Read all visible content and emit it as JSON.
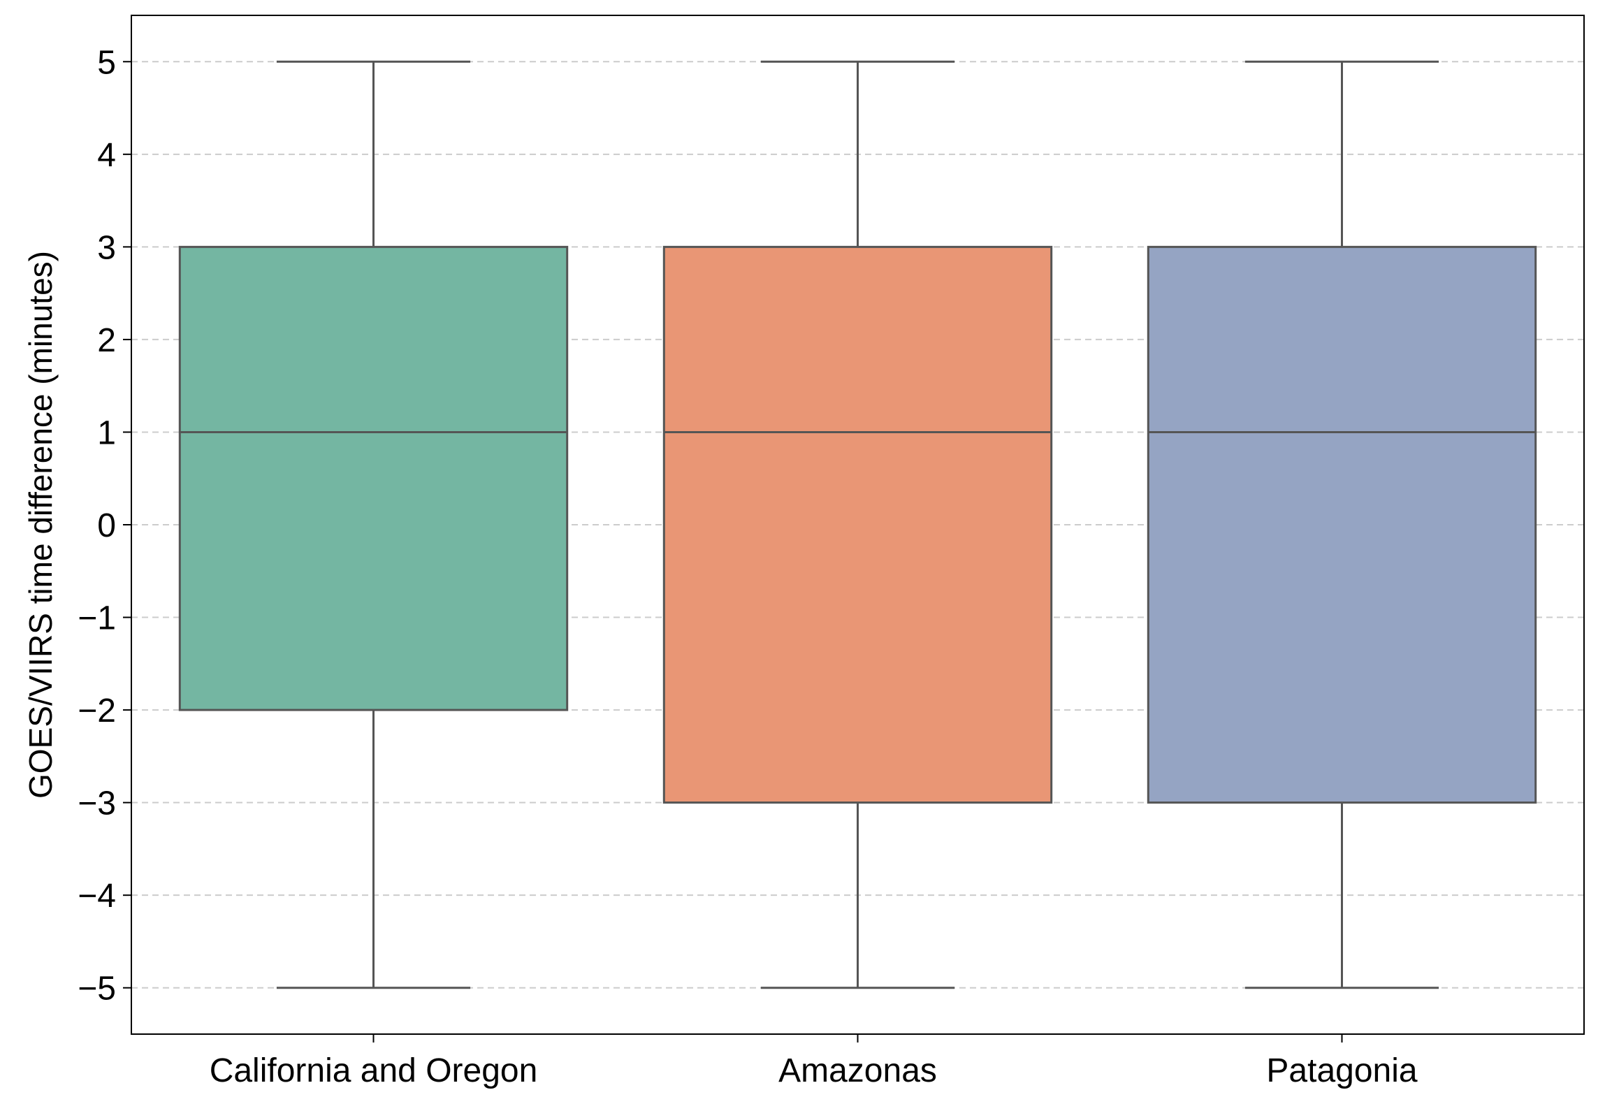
{
  "chart_data": {
    "type": "box",
    "title": "",
    "xlabel": "",
    "ylabel": "GOES/VIIRS time difference (minutes)",
    "ylim": [
      -5.5,
      5.5
    ],
    "yticks": [
      5,
      4,
      3,
      2,
      1,
      0,
      -1,
      -2,
      -3,
      -4,
      -5
    ],
    "ytick_labels": [
      "5",
      "4",
      "3",
      "2",
      "1",
      "0",
      "−1",
      "−2",
      "−3",
      "−4",
      "−5"
    ],
    "grid": "horizontal dashed",
    "categories": [
      "California and Oregon",
      "Amazonas",
      "Patagonia"
    ],
    "boxes": [
      {
        "category": "California and Oregon",
        "whisker_low": -5,
        "q1": -2,
        "median": 1,
        "q3": 3,
        "whisker_high": 5,
        "color": "#74b6a2"
      },
      {
        "category": "Amazonas",
        "whisker_low": -5,
        "q1": -3,
        "median": 1,
        "q3": 3,
        "whisker_high": 5,
        "color": "#e99675"
      },
      {
        "category": "Patagonia",
        "whisker_low": -5,
        "q1": -3,
        "median": 1,
        "q3": 3,
        "whisker_high": 5,
        "color": "#95a4c3"
      }
    ],
    "line_color": "#555555",
    "grid_color": "#cccccc"
  }
}
